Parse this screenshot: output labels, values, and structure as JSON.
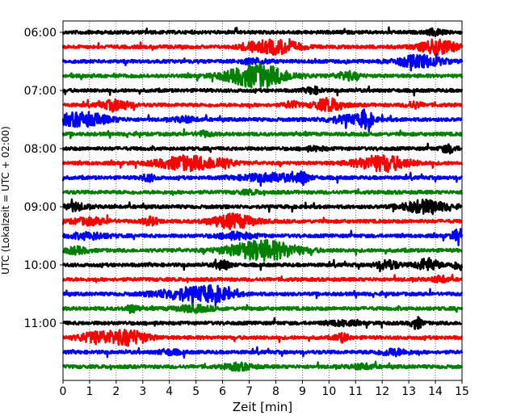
{
  "chart_data": {
    "type": "line",
    "title": "",
    "xlabel": "Zeit  [min]",
    "ylabel": "UTC (Lokalzeit = UTC + 02:00)",
    "xlim": [
      0,
      15
    ],
    "x_ticks": [
      "0",
      "1",
      "2",
      "3",
      "4",
      "5",
      "6",
      "7",
      "8",
      "9",
      "10",
      "11",
      "12",
      "13",
      "14",
      "15"
    ],
    "y_tick_labels": [
      "06:00",
      "07:00",
      "08:00",
      "09:00",
      "10:00",
      "11:00"
    ],
    "grid": "vertical dotted lines at each minute",
    "trace_interval_min": 15,
    "trace_start": "06:00",
    "trace_count": 24,
    "colors": [
      "#000000",
      "#ff0000",
      "#0000ff",
      "#008000"
    ],
    "bursts": [
      [
        [
          14.0,
          0.2,
          0.4
        ]
      ],
      [
        [
          8.0,
          0.6,
          0.9
        ],
        [
          14.1,
          0.5,
          0.9
        ],
        [
          7.0,
          0.3,
          0.3
        ]
      ],
      [
        [
          13.4,
          0.6,
          0.8
        ],
        [
          7.2,
          0.4,
          0.3
        ]
      ],
      [
        [
          7.3,
          0.8,
          1.5
        ],
        [
          10.7,
          0.3,
          0.5
        ]
      ],
      [
        [
          9.4,
          0.2,
          0.4
        ]
      ],
      [
        [
          2.0,
          0.4,
          0.6
        ],
        [
          8.6,
          0.2,
          0.4
        ],
        [
          10.0,
          0.4,
          0.8
        ],
        [
          13.2,
          0.2,
          0.4
        ]
      ],
      [
        [
          0.7,
          0.7,
          0.9
        ],
        [
          4.6,
          0.3,
          0.3
        ],
        [
          10.8,
          0.6,
          0.5
        ],
        [
          11.4,
          0.15,
          1.0
        ]
      ],
      [
        [
          5.3,
          0.2,
          0.3
        ]
      ],
      [
        [
          14.5,
          0.2,
          0.5
        ],
        [
          9.5,
          0.3,
          0.2
        ]
      ],
      [
        [
          4.7,
          0.8,
          0.9
        ],
        [
          12.0,
          0.7,
          1.0
        ],
        [
          6.0,
          0.3,
          0.4
        ]
      ],
      [
        [
          3.2,
          0.2,
          0.4
        ],
        [
          7.8,
          0.8,
          0.5
        ],
        [
          9.0,
          0.15,
          0.7
        ]
      ],
      [
        [
          7.0,
          0.3,
          0.2
        ]
      ],
      [
        [
          0.4,
          0.3,
          0.5
        ],
        [
          13.6,
          0.6,
          0.8
        ]
      ],
      [
        [
          1.0,
          0.5,
          0.4
        ],
        [
          3.3,
          0.2,
          0.5
        ],
        [
          6.4,
          0.6,
          0.9
        ]
      ],
      [
        [
          1.0,
          0.5,
          0.4
        ],
        [
          14.9,
          0.2,
          0.8
        ],
        [
          6.5,
          0.5,
          0.4
        ]
      ],
      [
        [
          7.5,
          0.9,
          1.3
        ],
        [
          0.5,
          0.3,
          0.4
        ]
      ],
      [
        [
          6.0,
          0.2,
          0.6
        ],
        [
          12.2,
          0.3,
          0.6
        ],
        [
          13.7,
          0.3,
          0.8
        ],
        [
          14.9,
          0.2,
          0.6
        ]
      ],
      [
        [
          14.2,
          0.2,
          0.4
        ]
      ],
      [
        [
          4.8,
          0.9,
          0.8
        ],
        [
          5.8,
          0.4,
          0.5
        ]
      ],
      [
        [
          2.6,
          0.15,
          0.5
        ],
        [
          4.9,
          0.5,
          0.4
        ]
      ],
      [
        [
          13.3,
          0.15,
          0.7
        ],
        [
          10.5,
          0.4,
          0.3
        ]
      ],
      [
        [
          1.3,
          0.5,
          0.7
        ],
        [
          2.5,
          0.5,
          0.9
        ],
        [
          10.5,
          0.2,
          0.5
        ]
      ],
      [
        [
          12.4,
          0.4,
          0.4
        ],
        [
          4.0,
          0.3,
          0.3
        ]
      ],
      [
        [
          6.6,
          0.4,
          0.4
        ],
        [
          11.3,
          0.3,
          0.3
        ]
      ]
    ]
  }
}
